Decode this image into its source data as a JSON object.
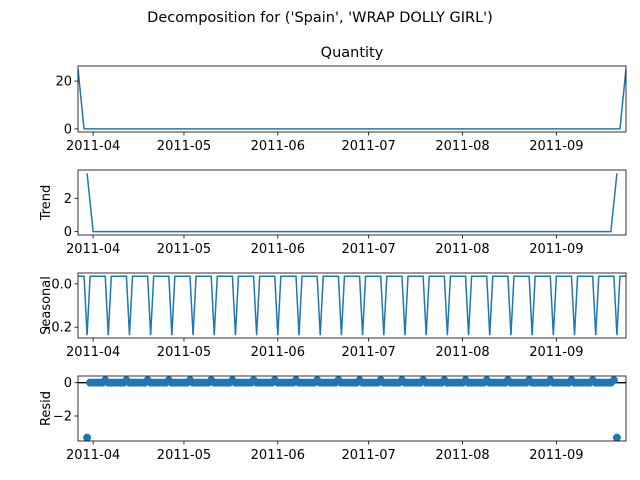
{
  "figure": {
    "suptitle": "Decomposition for ('Spain', 'WRAP DOLLY GIRL')"
  },
  "colors": {
    "series": "#1f77b4",
    "axis": "#000000",
    "background": "#ffffff"
  },
  "chart_data": [
    {
      "type": "line",
      "title": "Quantity",
      "ylabel": "",
      "x_range": [
        "2011-03-27",
        "2011-09-24"
      ],
      "ylim": [
        -1.3,
        26.3
      ],
      "yticks": [
        0,
        20
      ],
      "ytick_labels": [
        "0",
        "20"
      ],
      "xtick_labels": [
        "2011-04",
        "2011-05",
        "2011-06",
        "2011-07",
        "2011-08",
        "2011-09"
      ],
      "grid": false,
      "series": [
        {
          "x": [
            "2011-03-27",
            "2011-03-29",
            "2011-09-22",
            "2011-09-24"
          ],
          "y": [
            25,
            0,
            0,
            25
          ]
        }
      ]
    },
    {
      "type": "line",
      "title": "",
      "ylabel": "Trend",
      "x_range": [
        "2011-03-27",
        "2011-09-24"
      ],
      "ylim": [
        -0.2,
        3.7
      ],
      "yticks": [
        0,
        2
      ],
      "ytick_labels": [
        "0",
        "2"
      ],
      "xtick_labels": [
        "2011-04",
        "2011-05",
        "2011-06",
        "2011-07",
        "2011-08",
        "2011-09"
      ],
      "grid": false,
      "series": [
        {
          "x": [
            "2011-03-30",
            "2011-04-01",
            "2011-09-19",
            "2011-09-21"
          ],
          "y": [
            3.5,
            0,
            0,
            3.5
          ]
        }
      ]
    },
    {
      "type": "line",
      "title": "",
      "ylabel": "Seasonal",
      "x_range": [
        "2011-03-27",
        "2011-09-24"
      ],
      "ylim": [
        -0.25,
        0.05
      ],
      "yticks": [
        0.0,
        -0.2
      ],
      "ytick_labels": [
        "0.0",
        "−0.2"
      ],
      "xtick_labels": [
        "2011-04",
        "2011-05",
        "2011-06",
        "2011-07",
        "2011-08",
        "2011-09"
      ],
      "grid": false,
      "seasonal_pattern": {
        "period_days": 7,
        "high": 0.035,
        "low": -0.237,
        "low_day_offset": 3
      }
    },
    {
      "type": "scatter",
      "title": "",
      "ylabel": "Resid",
      "x_range": [
        "2011-03-27",
        "2011-09-24"
      ],
      "ylim": [
        -3.5,
        0.4
      ],
      "yticks": [
        0,
        -2
      ],
      "ytick_labels": [
        "0",
        "−2"
      ],
      "xtick_labels": [
        "2011-04",
        "2011-05",
        "2011-06",
        "2011-07",
        "2011-08",
        "2011-09"
      ],
      "grid": false,
      "baseline": 0,
      "outliers": [
        {
          "x": "2011-03-30",
          "y": -3.3
        },
        {
          "x": "2011-09-21",
          "y": -3.3
        }
      ],
      "residual_pattern": {
        "period_days": 7,
        "base": 0,
        "bump": 0.15
      }
    }
  ]
}
